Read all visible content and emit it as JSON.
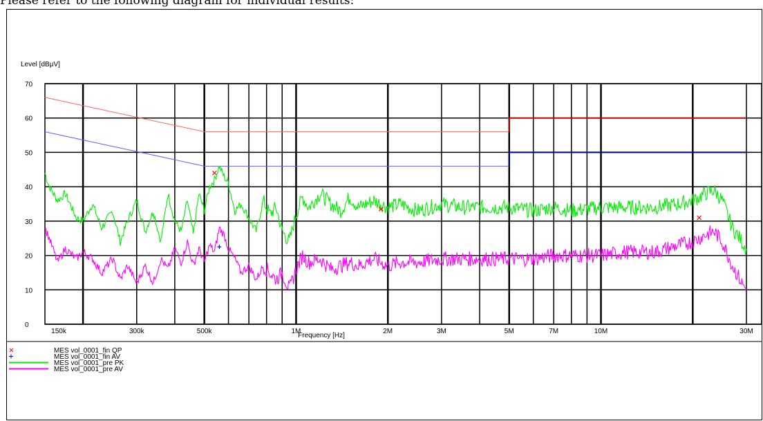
{
  "caption": "Please refer to the following diagram for individual results:",
  "chart_data": {
    "type": "line",
    "ylabel": "Level [dBµV]",
    "xlabel": "Frequency [Hz]",
    "x_scale": "log",
    "xlim": [
      150000,
      30000000
    ],
    "ylim": [
      0,
      70
    ],
    "grid": true,
    "x_ticks": [
      {
        "label": "150k",
        "value": 150000
      },
      {
        "label": "300k",
        "value": 300000
      },
      {
        "label": "500k",
        "value": 500000
      },
      {
        "label": "1M",
        "value": 1000000
      },
      {
        "label": "2M",
        "value": 2000000
      },
      {
        "label": "3M",
        "value": 3000000
      },
      {
        "label": "5M",
        "value": 5000000
      },
      {
        "label": "7M",
        "value": 7000000
      },
      {
        "label": "10M",
        "value": 10000000
      },
      {
        "label": "30M",
        "value": 30000000
      }
    ],
    "y_ticks": [
      0,
      10,
      20,
      30,
      40,
      50,
      60,
      70
    ],
    "limit_lines": [
      {
        "color": "#ff6060",
        "strong_color": "#c00000",
        "points": [
          [
            150000,
            66
          ],
          [
            500000,
            56
          ],
          [
            5000000,
            56
          ],
          [
            5000000,
            60
          ],
          [
            30000000,
            60
          ]
        ]
      },
      {
        "color": "#6060ff",
        "strong_color": "#000090",
        "points": [
          [
            150000,
            56
          ],
          [
            500000,
            46
          ],
          [
            5000000,
            46
          ],
          [
            5000000,
            50
          ],
          [
            30000000,
            50
          ]
        ]
      }
    ],
    "series": [
      {
        "name": "MES vol_0001_pre PK",
        "color": "#00ee00",
        "points": [
          [
            150000,
            44
          ],
          [
            155000,
            40
          ],
          [
            165000,
            36
          ],
          [
            175000,
            38
          ],
          [
            190000,
            31
          ],
          [
            200000,
            30
          ],
          [
            215000,
            35
          ],
          [
            230000,
            28
          ],
          [
            250000,
            33
          ],
          [
            265000,
            24
          ],
          [
            280000,
            30
          ],
          [
            300000,
            36
          ],
          [
            320000,
            27
          ],
          [
            340000,
            33
          ],
          [
            360000,
            24
          ],
          [
            380000,
            38
          ],
          [
            400000,
            30
          ],
          [
            420000,
            27
          ],
          [
            440000,
            36
          ],
          [
            460000,
            26
          ],
          [
            480000,
            38
          ],
          [
            500000,
            33
          ],
          [
            520000,
            40
          ],
          [
            540000,
            42
          ],
          [
            560000,
            46
          ],
          [
            580000,
            43
          ],
          [
            600000,
            41
          ],
          [
            630000,
            33
          ],
          [
            660000,
            35
          ],
          [
            700000,
            31
          ],
          [
            740000,
            27
          ],
          [
            780000,
            36
          ],
          [
            820000,
            32
          ],
          [
            860000,
            34
          ],
          [
            900000,
            27
          ],
          [
            950000,
            24
          ],
          [
            1000000,
            32
          ],
          [
            1050000,
            37
          ],
          [
            1100000,
            34
          ],
          [
            1200000,
            38
          ],
          [
            1300000,
            35
          ],
          [
            1400000,
            33
          ],
          [
            1500000,
            37
          ],
          [
            1600000,
            34
          ],
          [
            1800000,
            36
          ],
          [
            2000000,
            34
          ],
          [
            2200000,
            35
          ],
          [
            2500000,
            33
          ],
          [
            3000000,
            35
          ],
          [
            3500000,
            34
          ],
          [
            4000000,
            34
          ],
          [
            5000000,
            34
          ],
          [
            6000000,
            33
          ],
          [
            7000000,
            34
          ],
          [
            8000000,
            33
          ],
          [
            10000000,
            34
          ],
          [
            12000000,
            34
          ],
          [
            15000000,
            34
          ],
          [
            18000000,
            35
          ],
          [
            20000000,
            36
          ],
          [
            22000000,
            38
          ],
          [
            23500000,
            39
          ],
          [
            25000000,
            36
          ],
          [
            27000000,
            28
          ],
          [
            29000000,
            24
          ],
          [
            30000000,
            22
          ]
        ]
      },
      {
        "name": "MES vol_0001_pre AV",
        "color": "#ff00ff",
        "points": [
          [
            150000,
            28
          ],
          [
            155000,
            25
          ],
          [
            165000,
            18
          ],
          [
            175000,
            22
          ],
          [
            190000,
            19
          ],
          [
            200000,
            21
          ],
          [
            215000,
            19
          ],
          [
            230000,
            15
          ],
          [
            250000,
            19
          ],
          [
            265000,
            13
          ],
          [
            280000,
            17
          ],
          [
            300000,
            12
          ],
          [
            320000,
            17
          ],
          [
            340000,
            12
          ],
          [
            360000,
            19
          ],
          [
            380000,
            16
          ],
          [
            400000,
            22
          ],
          [
            420000,
            18
          ],
          [
            440000,
            24
          ],
          [
            460000,
            17
          ],
          [
            480000,
            22
          ],
          [
            500000,
            18
          ],
          [
            520000,
            23
          ],
          [
            540000,
            21
          ],
          [
            560000,
            28
          ],
          [
            580000,
            26
          ],
          [
            600000,
            22
          ],
          [
            630000,
            19
          ],
          [
            660000,
            15
          ],
          [
            700000,
            17
          ],
          [
            740000,
            13
          ],
          [
            780000,
            17
          ],
          [
            820000,
            15
          ],
          [
            860000,
            13
          ],
          [
            900000,
            15
          ],
          [
            950000,
            10
          ],
          [
            1000000,
            16
          ],
          [
            1050000,
            20
          ],
          [
            1100000,
            18
          ],
          [
            1200000,
            19
          ],
          [
            1300000,
            16
          ],
          [
            1400000,
            17
          ],
          [
            1500000,
            18
          ],
          [
            1600000,
            17
          ],
          [
            1800000,
            19
          ],
          [
            2000000,
            17
          ],
          [
            2200000,
            18
          ],
          [
            2500000,
            18
          ],
          [
            3000000,
            19
          ],
          [
            3500000,
            19
          ],
          [
            4000000,
            19
          ],
          [
            5000000,
            19
          ],
          [
            6000000,
            19
          ],
          [
            7000000,
            20
          ],
          [
            8000000,
            20
          ],
          [
            10000000,
            20
          ],
          [
            12000000,
            21
          ],
          [
            15000000,
            21
          ],
          [
            18000000,
            23
          ],
          [
            20000000,
            24
          ],
          [
            22000000,
            26
          ],
          [
            23500000,
            27
          ],
          [
            25000000,
            24
          ],
          [
            27000000,
            17
          ],
          [
            29000000,
            12
          ],
          [
            30000000,
            10
          ]
        ]
      }
    ],
    "markers": [
      {
        "name": "MES vol_0001_fin QP",
        "symbol": "x",
        "color": "#ff0000",
        "points": [
          [
            540000,
            44
          ],
          [
            1900000,
            33.5
          ],
          [
            21000000,
            31
          ]
        ]
      },
      {
        "name": "MES vol_0001_fin AV",
        "symbol": "+",
        "color": "#0000ff",
        "points": [
          [
            560000,
            22.5
          ]
        ]
      }
    ]
  },
  "legend": [
    {
      "symbol": "x",
      "color": "#ff0000",
      "label": "MES  vol_0001_fin QP"
    },
    {
      "symbol": "+",
      "color": "#0000ff",
      "label": "MES  vol_0001_fin AV"
    },
    {
      "symbol": "line",
      "color": "#00ee00",
      "label": "MES  vol_0001_pre PK"
    },
    {
      "symbol": "line",
      "color": "#ff00ff",
      "label": "MES  vol_0001_pre AV"
    }
  ]
}
